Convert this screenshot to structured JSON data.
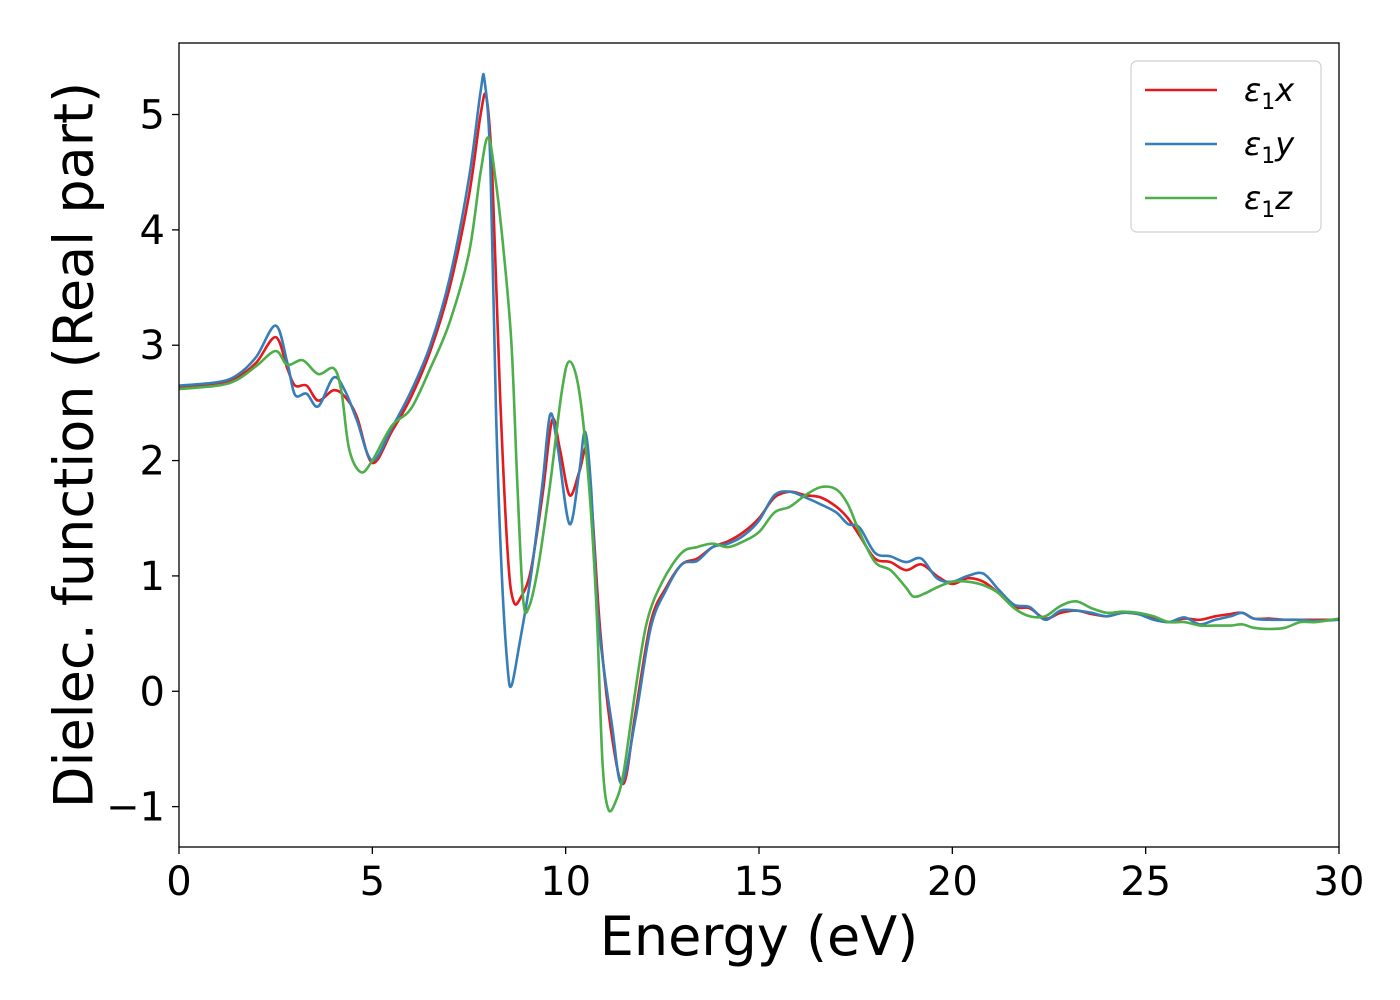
{
  "chart_data": {
    "type": "line",
    "xlabel": "Energy (eV)",
    "ylabel": "Dielec. function (Real part)",
    "xlim": [
      0,
      30
    ],
    "ylim": [
      -1.35,
      5.62
    ],
    "xticks": [
      0,
      5,
      10,
      15,
      20,
      25,
      30
    ],
    "yticks": [
      -1,
      0,
      1,
      2,
      3,
      4,
      5
    ],
    "xtick_labels": [
      "0",
      "5",
      "10",
      "15",
      "20",
      "25",
      "30"
    ],
    "ytick_labels": [
      "−1",
      "0",
      "1",
      "2",
      "3",
      "4",
      "5"
    ],
    "grid": false,
    "legend_position": "top-right",
    "series": [
      {
        "name": "ε₁x",
        "legend": {
          "symbol": "ε",
          "sub": "1",
          "axis": "x"
        },
        "color": "#e41a1c",
        "points": [
          [
            0,
            2.64
          ],
          [
            1,
            2.67
          ],
          [
            1.5,
            2.72
          ],
          [
            2,
            2.85
          ],
          [
            2.5,
            3.07
          ],
          [
            2.8,
            2.8
          ],
          [
            3.0,
            2.65
          ],
          [
            3.3,
            2.65
          ],
          [
            3.6,
            2.52
          ],
          [
            4.0,
            2.61
          ],
          [
            4.3,
            2.55
          ],
          [
            4.6,
            2.38
          ],
          [
            5.0,
            1.98
          ],
          [
            5.5,
            2.25
          ],
          [
            6,
            2.55
          ],
          [
            6.5,
            2.95
          ],
          [
            7,
            3.5
          ],
          [
            7.5,
            4.3
          ],
          [
            7.8,
            5.0
          ],
          [
            7.95,
            5.15
          ],
          [
            8.1,
            4.5
          ],
          [
            8.3,
            2.6
          ],
          [
            8.5,
            1.2
          ],
          [
            8.65,
            0.78
          ],
          [
            8.85,
            0.82
          ],
          [
            9.1,
            1.05
          ],
          [
            9.4,
            1.7
          ],
          [
            9.65,
            2.35
          ],
          [
            9.85,
            2.1
          ],
          [
            10.1,
            1.7
          ],
          [
            10.35,
            1.9
          ],
          [
            10.55,
            2.1
          ],
          [
            10.7,
            1.5
          ],
          [
            10.9,
            0.5
          ],
          [
            11.2,
            -0.4
          ],
          [
            11.5,
            -0.8
          ],
          [
            11.8,
            -0.2
          ],
          [
            12.2,
            0.6
          ],
          [
            12.6,
            0.9
          ],
          [
            13,
            1.1
          ],
          [
            13.4,
            1.15
          ],
          [
            13.8,
            1.25
          ],
          [
            14.2,
            1.3
          ],
          [
            14.6,
            1.38
          ],
          [
            15,
            1.5
          ],
          [
            15.4,
            1.68
          ],
          [
            15.8,
            1.73
          ],
          [
            16.2,
            1.7
          ],
          [
            16.6,
            1.68
          ],
          [
            17,
            1.6
          ],
          [
            17.3,
            1.5
          ],
          [
            17.6,
            1.35
          ],
          [
            18,
            1.15
          ],
          [
            18.4,
            1.12
          ],
          [
            18.8,
            1.05
          ],
          [
            19.2,
            1.1
          ],
          [
            19.6,
            1.0
          ],
          [
            20,
            0.93
          ],
          [
            20.4,
            0.98
          ],
          [
            20.8,
            0.95
          ],
          [
            21.2,
            0.85
          ],
          [
            21.6,
            0.73
          ],
          [
            22,
            0.72
          ],
          [
            22.4,
            0.63
          ],
          [
            22.8,
            0.68
          ],
          [
            23.2,
            0.7
          ],
          [
            23.6,
            0.67
          ],
          [
            24,
            0.65
          ],
          [
            24.4,
            0.68
          ],
          [
            24.8,
            0.67
          ],
          [
            25.2,
            0.63
          ],
          [
            25.6,
            0.6
          ],
          [
            26,
            0.63
          ],
          [
            26.4,
            0.62
          ],
          [
            26.8,
            0.65
          ],
          [
            27.2,
            0.67
          ],
          [
            27.5,
            0.68
          ],
          [
            27.8,
            0.63
          ],
          [
            28.2,
            0.63
          ],
          [
            28.6,
            0.62
          ],
          [
            29,
            0.62
          ],
          [
            29.4,
            0.62
          ],
          [
            30,
            0.62
          ]
        ]
      },
      {
        "name": "ε₁y",
        "legend": {
          "symbol": "ε",
          "sub": "1",
          "axis": "y"
        },
        "color": "#377eb8",
        "points": [
          [
            0,
            2.65
          ],
          [
            1,
            2.68
          ],
          [
            1.5,
            2.74
          ],
          [
            2,
            2.9
          ],
          [
            2.5,
            3.17
          ],
          [
            2.8,
            2.85
          ],
          [
            3.0,
            2.57
          ],
          [
            3.3,
            2.58
          ],
          [
            3.6,
            2.47
          ],
          [
            4.0,
            2.72
          ],
          [
            4.3,
            2.6
          ],
          [
            4.6,
            2.35
          ],
          [
            5.0,
            2.0
          ],
          [
            5.5,
            2.28
          ],
          [
            6,
            2.6
          ],
          [
            6.5,
            3.0
          ],
          [
            7,
            3.58
          ],
          [
            7.5,
            4.45
          ],
          [
            7.8,
            5.2
          ],
          [
            7.9,
            5.3
          ],
          [
            8.05,
            4.6
          ],
          [
            8.2,
            2.4
          ],
          [
            8.35,
            1.0
          ],
          [
            8.5,
            0.2
          ],
          [
            8.6,
            0.05
          ],
          [
            8.8,
            0.4
          ],
          [
            9.1,
            1.0
          ],
          [
            9.4,
            1.8
          ],
          [
            9.6,
            2.4
          ],
          [
            9.8,
            2.1
          ],
          [
            10.1,
            1.45
          ],
          [
            10.35,
            1.9
          ],
          [
            10.5,
            2.25
          ],
          [
            10.65,
            1.8
          ],
          [
            10.85,
            0.6
          ],
          [
            11.2,
            -0.3
          ],
          [
            11.45,
            -0.8
          ],
          [
            11.8,
            -0.25
          ],
          [
            12.2,
            0.55
          ],
          [
            12.6,
            0.88
          ],
          [
            13,
            1.1
          ],
          [
            13.4,
            1.13
          ],
          [
            13.8,
            1.25
          ],
          [
            14.2,
            1.28
          ],
          [
            14.6,
            1.35
          ],
          [
            15,
            1.48
          ],
          [
            15.4,
            1.7
          ],
          [
            15.8,
            1.73
          ],
          [
            16.2,
            1.68
          ],
          [
            16.6,
            1.62
          ],
          [
            17,
            1.55
          ],
          [
            17.3,
            1.45
          ],
          [
            17.6,
            1.42
          ],
          [
            18,
            1.2
          ],
          [
            18.4,
            1.17
          ],
          [
            18.8,
            1.12
          ],
          [
            19.2,
            1.15
          ],
          [
            19.6,
            0.98
          ],
          [
            20,
            0.95
          ],
          [
            20.4,
            1.0
          ],
          [
            20.8,
            1.02
          ],
          [
            21.2,
            0.88
          ],
          [
            21.6,
            0.75
          ],
          [
            22,
            0.73
          ],
          [
            22.4,
            0.62
          ],
          [
            22.8,
            0.7
          ],
          [
            23.2,
            0.7
          ],
          [
            23.6,
            0.68
          ],
          [
            24,
            0.65
          ],
          [
            24.4,
            0.68
          ],
          [
            24.8,
            0.67
          ],
          [
            25.2,
            0.62
          ],
          [
            25.6,
            0.6
          ],
          [
            26,
            0.64
          ],
          [
            26.4,
            0.58
          ],
          [
            26.8,
            0.62
          ],
          [
            27.2,
            0.65
          ],
          [
            27.5,
            0.68
          ],
          [
            27.8,
            0.63
          ],
          [
            28.2,
            0.62
          ],
          [
            28.6,
            0.62
          ],
          [
            29,
            0.62
          ],
          [
            29.4,
            0.61
          ],
          [
            30,
            0.62
          ]
        ]
      },
      {
        "name": "ε₁z",
        "legend": {
          "symbol": "ε",
          "sub": "1",
          "axis": "z"
        },
        "color": "#4daf4a",
        "points": [
          [
            0,
            2.62
          ],
          [
            1,
            2.65
          ],
          [
            1.5,
            2.7
          ],
          [
            2,
            2.82
          ],
          [
            2.5,
            2.95
          ],
          [
            2.8,
            2.83
          ],
          [
            3.2,
            2.87
          ],
          [
            3.6,
            2.75
          ],
          [
            4.0,
            2.8
          ],
          [
            4.2,
            2.6
          ],
          [
            4.4,
            2.1
          ],
          [
            4.7,
            1.9
          ],
          [
            5.0,
            2.0
          ],
          [
            5.5,
            2.3
          ],
          [
            6,
            2.45
          ],
          [
            6.5,
            2.8
          ],
          [
            7,
            3.2
          ],
          [
            7.5,
            3.8
          ],
          [
            7.8,
            4.5
          ],
          [
            8.0,
            4.8
          ],
          [
            8.2,
            4.4
          ],
          [
            8.4,
            3.8
          ],
          [
            8.6,
            3.0
          ],
          [
            8.75,
            1.8
          ],
          [
            8.9,
            0.8
          ],
          [
            9.05,
            0.73
          ],
          [
            9.3,
            1.1
          ],
          [
            9.6,
            1.8
          ],
          [
            9.9,
            2.6
          ],
          [
            10.1,
            2.86
          ],
          [
            10.35,
            2.6
          ],
          [
            10.6,
            1.8
          ],
          [
            10.8,
            0.7
          ],
          [
            10.95,
            -0.6
          ],
          [
            11.1,
            -1.02
          ],
          [
            11.3,
            -0.95
          ],
          [
            11.5,
            -0.7
          ],
          [
            11.8,
            0.0
          ],
          [
            12.1,
            0.6
          ],
          [
            12.5,
            0.95
          ],
          [
            13,
            1.2
          ],
          [
            13.4,
            1.25
          ],
          [
            13.8,
            1.28
          ],
          [
            14.2,
            1.25
          ],
          [
            14.6,
            1.3
          ],
          [
            15,
            1.38
          ],
          [
            15.4,
            1.55
          ],
          [
            15.8,
            1.6
          ],
          [
            16.2,
            1.7
          ],
          [
            16.6,
            1.77
          ],
          [
            17,
            1.75
          ],
          [
            17.3,
            1.62
          ],
          [
            17.6,
            1.38
          ],
          [
            18,
            1.12
          ],
          [
            18.4,
            1.05
          ],
          [
            18.8,
            0.9
          ],
          [
            19.0,
            0.82
          ],
          [
            19.3,
            0.85
          ],
          [
            19.6,
            0.9
          ],
          [
            20,
            0.95
          ],
          [
            20.4,
            0.95
          ],
          [
            20.8,
            0.92
          ],
          [
            21.2,
            0.85
          ],
          [
            21.6,
            0.72
          ],
          [
            22,
            0.65
          ],
          [
            22.4,
            0.65
          ],
          [
            22.8,
            0.74
          ],
          [
            23.2,
            0.78
          ],
          [
            23.6,
            0.72
          ],
          [
            24,
            0.68
          ],
          [
            24.4,
            0.69
          ],
          [
            24.8,
            0.68
          ],
          [
            25.2,
            0.65
          ],
          [
            25.6,
            0.6
          ],
          [
            26,
            0.6
          ],
          [
            26.4,
            0.57
          ],
          [
            26.8,
            0.57
          ],
          [
            27.2,
            0.57
          ],
          [
            27.5,
            0.58
          ],
          [
            27.8,
            0.55
          ],
          [
            28.2,
            0.54
          ],
          [
            28.6,
            0.55
          ],
          [
            29,
            0.6
          ],
          [
            29.4,
            0.6
          ],
          [
            30,
            0.63
          ]
        ]
      }
    ]
  }
}
